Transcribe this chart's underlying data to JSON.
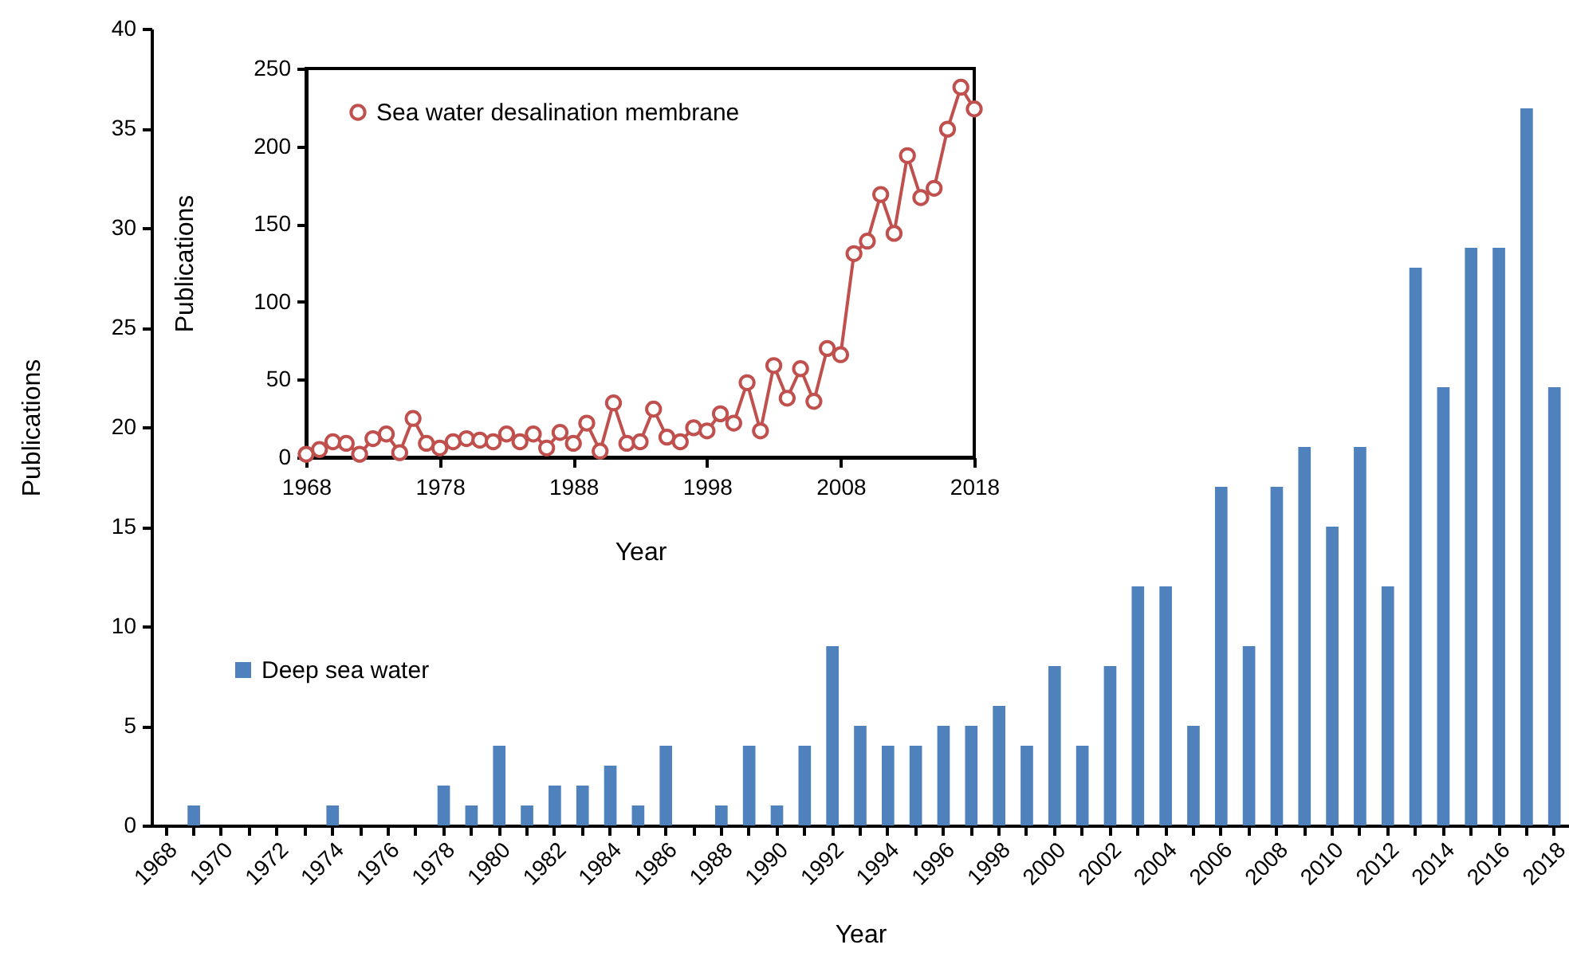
{
  "chart_data": [
    {
      "type": "bar",
      "xlabel": "Year",
      "ylabel": "Publications",
      "categories": [
        "1968",
        null,
        "1970",
        null,
        "1972",
        null,
        "1974",
        null,
        "1976",
        null,
        "1978",
        null,
        "1980",
        null,
        "1982",
        null,
        "1984",
        null,
        "1986",
        null,
        "1988",
        null,
        "1990",
        null,
        "1992",
        null,
        "1994",
        null,
        "1996",
        null,
        "1998",
        null,
        "2000",
        null,
        "2002",
        null,
        "2004",
        null,
        "2006",
        null,
        "2008",
        null,
        "2010",
        null,
        "2012",
        null,
        "2014",
        null,
        "2016",
        null,
        "2018"
      ],
      "series": [
        {
          "name": "Deep sea water",
          "color": "#4f81bd",
          "values": [
            0,
            1,
            0,
            0,
            0,
            0,
            1,
            0,
            0,
            0,
            2,
            1,
            4,
            1,
            2,
            2,
            3,
            1,
            4,
            0,
            1,
            4,
            1,
            4,
            9,
            5,
            4,
            4,
            5,
            5,
            6,
            4,
            8,
            4,
            8,
            12,
            12,
            5,
            17,
            9,
            17,
            19,
            15,
            19,
            12,
            28,
            22,
            29,
            29,
            36,
            22
          ]
        }
      ],
      "ylim": [
        0,
        40
      ],
      "yticks": [
        0,
        5,
        10,
        15,
        20,
        25,
        30,
        35,
        40
      ],
      "legend": "left",
      "grid": false
    },
    {
      "type": "line",
      "xlabel": "Year",
      "ylabel": "Publications",
      "x": [
        1968,
        1969,
        1970,
        1971,
        1972,
        1973,
        1974,
        1975,
        1976,
        1977,
        1978,
        1979,
        1980,
        1981,
        1982,
        1983,
        1984,
        1985,
        1986,
        1987,
        1988,
        1989,
        1990,
        1991,
        1992,
        1993,
        1994,
        1995,
        1996,
        1997,
        1998,
        1999,
        2000,
        2001,
        2002,
        2003,
        2004,
        2005,
        2006,
        2007,
        2008,
        2009,
        2010,
        2011,
        2012,
        2013,
        2014,
        2015,
        2016,
        2017,
        2018
      ],
      "series": [
        {
          "name": "Sea water desalination membrane",
          "color": "#c0504d",
          "values": [
            2,
            5,
            10,
            9,
            2,
            12,
            15,
            3,
            25,
            9,
            6,
            10,
            12,
            11,
            10,
            15,
            10,
            15,
            6,
            16,
            9,
            22,
            4,
            35,
            9,
            10,
            31,
            13,
            10,
            19,
            17,
            28,
            22,
            48,
            17,
            59,
            38,
            57,
            36,
            70,
            66,
            131,
            139,
            169,
            144,
            194,
            167,
            173,
            211,
            238,
            224
          ]
        }
      ],
      "xlim": [
        1968,
        2018
      ],
      "xticks": [
        1968,
        1978,
        1988,
        1998,
        2008,
        2018
      ],
      "ylim": [
        0,
        250
      ],
      "yticks": [
        0,
        50,
        100,
        150,
        200,
        250
      ],
      "legend": "top left",
      "marker": "circle",
      "line_style": "solid",
      "grid": false
    }
  ]
}
